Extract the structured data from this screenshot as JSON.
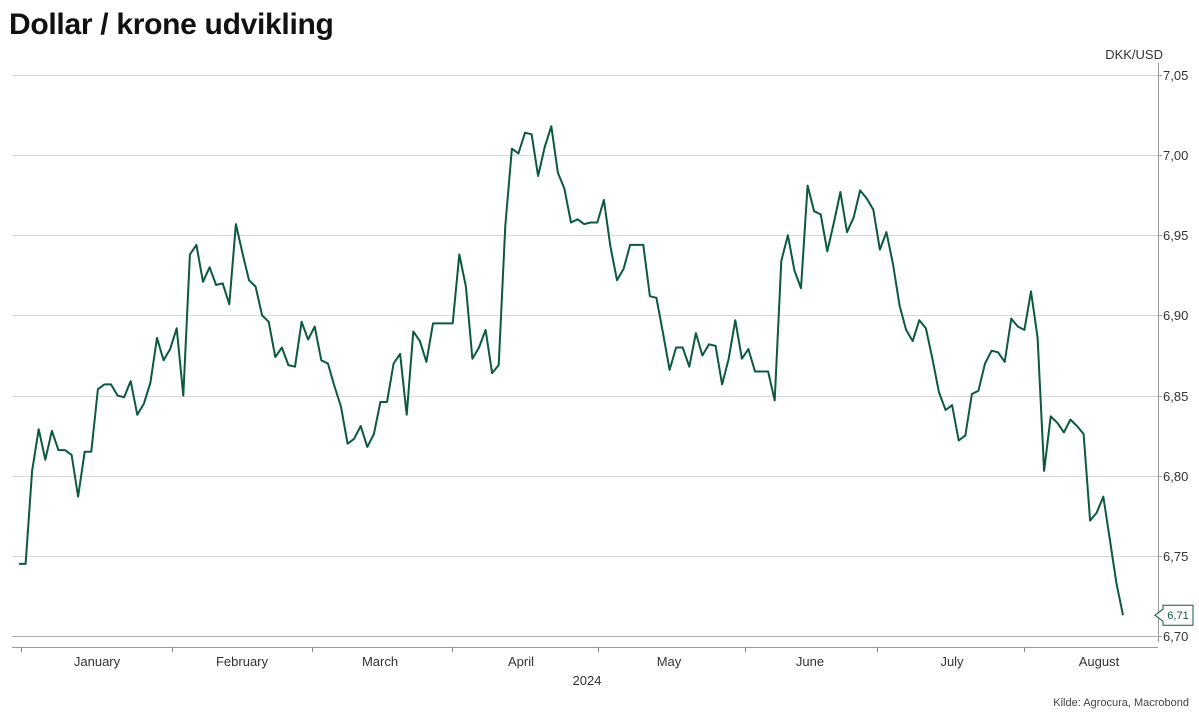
{
  "header": {
    "title": "Dollar / krone udvikling"
  },
  "footer": {
    "source": "Kilde: Agrocura, Macrobond"
  },
  "chart_data": {
    "type": "line",
    "title": "Dollar / krone udvikling",
    "ylabel": "DKK/USD",
    "xlabel": "2024",
    "ylim": [
      6.7,
      7.05
    ],
    "yticks": [
      "7,05",
      "7,00",
      "6,95",
      "6,90",
      "6,85",
      "6,80",
      "6,75",
      "6,70"
    ],
    "ytick_values": [
      7.05,
      7.0,
      6.95,
      6.9,
      6.85,
      6.8,
      6.75,
      6.7
    ],
    "month_labels": [
      "January",
      "February",
      "March",
      "April",
      "May",
      "June",
      "July",
      "August"
    ],
    "grid": true,
    "last_value_label": "6,71",
    "colors": {
      "line": "#0b5a3c",
      "grid": "#d9d9d9",
      "axis": "#888888"
    },
    "series": [
      {
        "values": [
          6.745,
          6.745,
          6.803,
          6.829,
          6.81,
          6.828,
          6.816,
          6.816,
          6.813,
          6.787,
          6.815,
          6.815,
          6.854,
          6.857,
          6.857,
          6.85,
          6.849,
          6.859,
          6.838,
          6.845,
          6.858,
          6.886,
          6.872,
          6.879,
          6.892,
          6.85,
          6.938,
          6.944,
          6.921,
          6.93,
          6.919,
          6.92,
          6.907,
          6.957,
          6.939,
          6.922,
          6.918,
          6.9,
          6.896,
          6.874,
          6.88,
          6.869,
          6.868,
          6.896,
          6.885,
          6.893,
          6.872,
          6.87,
          6.856,
          6.843,
          6.82,
          6.823,
          6.831,
          6.818,
          6.826,
          6.846,
          6.846,
          6.87,
          6.876,
          6.838,
          6.89,
          6.884,
          6.871,
          6.895,
          6.895,
          6.895,
          6.895,
          6.938,
          6.918,
          6.873,
          6.88,
          6.891,
          6.864,
          6.869,
          6.956,
          7.004,
          7.001,
          7.014,
          7.013,
          6.987,
          7.005,
          7.018,
          6.989,
          6.979,
          6.958,
          6.96,
          6.957,
          6.958,
          6.958,
          6.972,
          6.943,
          6.922,
          6.929,
          6.944,
          6.944,
          6.944,
          6.912,
          6.911,
          6.889,
          6.866,
          6.88,
          6.88,
          6.868,
          6.889,
          6.875,
          6.882,
          6.881,
          6.857,
          6.873,
          6.897,
          6.873,
          6.879,
          6.865,
          6.865,
          6.865,
          6.847,
          6.934,
          6.95,
          6.928,
          6.917,
          6.981,
          6.965,
          6.963,
          6.94,
          6.958,
          6.977,
          6.952,
          6.961,
          6.978,
          6.973,
          6.966,
          6.941,
          6.952,
          6.932,
          6.906,
          6.891,
          6.884,
          6.897,
          6.892,
          6.873,
          6.852,
          6.841,
          6.844,
          6.822,
          6.825,
          6.851,
          6.853,
          6.87,
          6.878,
          6.877,
          6.871,
          6.898,
          6.893,
          6.891,
          6.915,
          6.886,
          6.803,
          6.837,
          6.833,
          6.827,
          6.835,
          6.831,
          6.826,
          6.772,
          6.777,
          6.787,
          6.76,
          6.733,
          6.713
        ]
      }
    ]
  }
}
